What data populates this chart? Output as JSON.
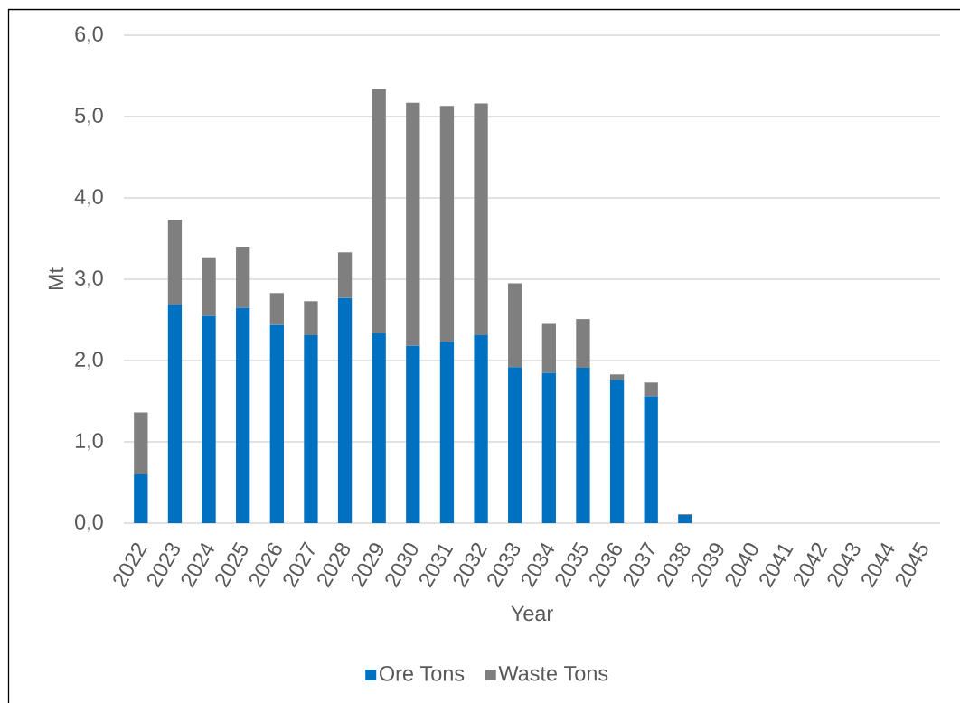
{
  "chart_data": {
    "type": "bar",
    "stacked": true,
    "xlabel": "Year",
    "ylabel": "Mt",
    "categories": [
      "2022",
      "2023",
      "2024",
      "2025",
      "2026",
      "2027",
      "2028",
      "2029",
      "2030",
      "2031",
      "2032",
      "2033",
      "2034",
      "2035",
      "2036",
      "2037",
      "2038",
      "2039",
      "2040",
      "2041",
      "2042",
      "2043",
      "2044",
      "2045"
    ],
    "series": [
      {
        "name": "Ore Tons",
        "color": "#0070c0",
        "values": [
          0.6,
          2.69,
          2.55,
          2.65,
          2.44,
          2.31,
          2.77,
          2.34,
          2.18,
          2.23,
          2.31,
          1.92,
          1.85,
          1.91,
          1.76,
          1.56,
          0.1,
          null,
          null,
          null,
          null,
          null,
          null,
          null
        ]
      },
      {
        "name": "Waste Tons",
        "color": "#7f7f7f",
        "values": [
          0.76,
          1.04,
          0.72,
          0.75,
          0.39,
          0.42,
          0.56,
          3.0,
          2.99,
          2.9,
          2.85,
          1.03,
          0.6,
          0.6,
          0.07,
          0.17,
          0.01,
          null,
          null,
          null,
          null,
          null,
          null,
          null
        ]
      }
    ],
    "ylim": [
      0,
      6
    ],
    "yticks": [
      {
        "value": 0,
        "label": "0,0"
      },
      {
        "value": 1,
        "label": "1,0"
      },
      {
        "value": 2,
        "label": "2,0"
      },
      {
        "value": 3,
        "label": "3,0"
      },
      {
        "value": 4,
        "label": "4,0"
      },
      {
        "value": 5,
        "label": "5,0"
      },
      {
        "value": 6,
        "label": "6,0"
      }
    ],
    "grid": "y",
    "legend": "bottom"
  }
}
